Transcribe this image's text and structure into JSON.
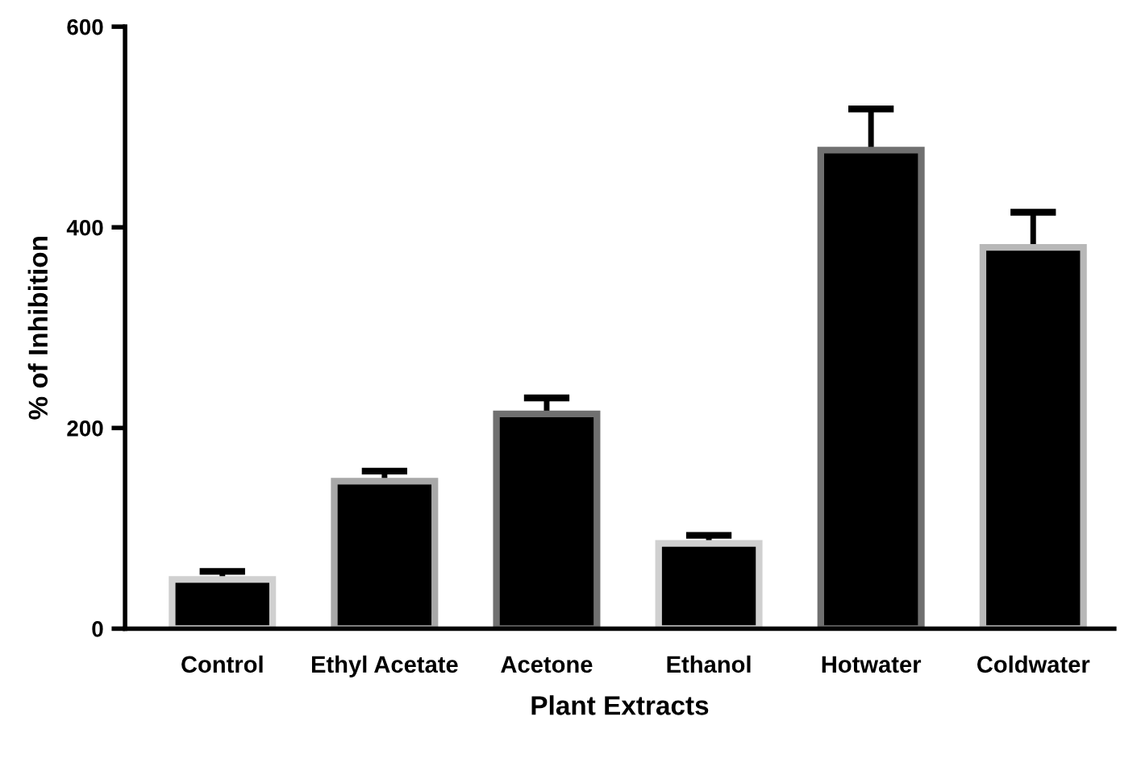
{
  "chart_data": {
    "type": "bar",
    "xlabel": "Plant Extracts",
    "ylabel": "% of Inhibition",
    "categories": [
      "Control",
      "Ethyl Acetate",
      "Acetone",
      "Ethanol",
      "Hotwater",
      "Coldwater"
    ],
    "values": [
      49,
      147,
      214,
      85,
      477,
      380
    ],
    "errors": [
      [
        49,
        57
      ],
      [
        147,
        157
      ],
      [
        214,
        230
      ],
      [
        85,
        93
      ],
      [
        477,
        518
      ],
      [
        380,
        415
      ]
    ],
    "color": "#000000",
    "ylim": [
      0,
      600
    ],
    "yticks": [
      0,
      200,
      400,
      600
    ],
    "grid": false,
    "legend": false
  }
}
